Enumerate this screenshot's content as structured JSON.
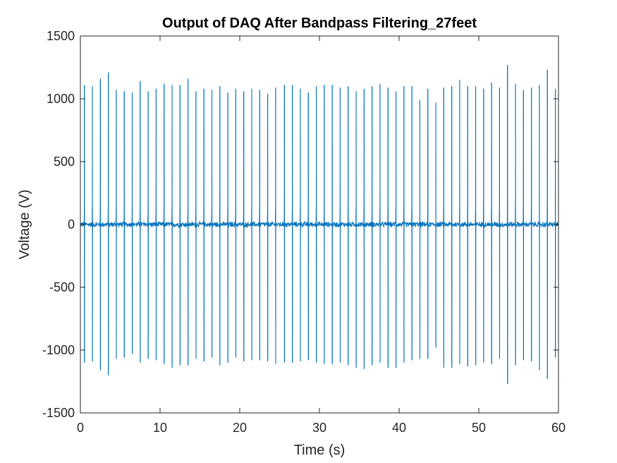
{
  "chart_data": {
    "type": "line",
    "title": "Output of DAQ After Bandpass Filtering_27feet",
    "xlabel": "Time (s)",
    "ylabel": "Voltage (V)",
    "xlim": [
      0,
      60
    ],
    "ylim": [
      -1500,
      1500
    ],
    "xticks": [
      0,
      10,
      20,
      30,
      40,
      50,
      60
    ],
    "yticks": [
      -1500,
      -1000,
      -500,
      0,
      500,
      1000,
      1500
    ],
    "xtick_labels": [
      "0",
      "10",
      "20",
      "30",
      "40",
      "50",
      "60"
    ],
    "ytick_labels": [
      "-1500",
      "-1000",
      "-500",
      "0",
      "500",
      "1000",
      "1500"
    ],
    "grid": false,
    "line_color": "#0072BD",
    "baseline_noise_amplitude": 25,
    "series": [
      {
        "spike_times": [
          0.5,
          1.5,
          2.5,
          3.5,
          4.5,
          5.5,
          6.5,
          7.5,
          8.5,
          9.5,
          10.5,
          11.5,
          12.5,
          13.5,
          14.5,
          15.5,
          16.5,
          17.5,
          18.5,
          19.5,
          20.5,
          21.5,
          22.5,
          23.5,
          24.5,
          25.6,
          26.6,
          27.6,
          28.6,
          29.6,
          30.6,
          31.6,
          32.6,
          33.6,
          34.6,
          35.6,
          36.6,
          37.6,
          38.6,
          39.6,
          40.6,
          41.6,
          42.6,
          43.6,
          44.6,
          45.6,
          46.6,
          47.6,
          48.6,
          49.6,
          50.6,
          51.6,
          52.6,
          53.6,
          54.6,
          55.6,
          56.6,
          57.6,
          58.6,
          59.6
        ],
        "spike_peaks": [
          1110,
          1100,
          1160,
          1210,
          1070,
          1060,
          1050,
          1140,
          1060,
          1080,
          1120,
          1110,
          1110,
          1160,
          1060,
          1080,
          1070,
          1100,
          1050,
          1080,
          1060,
          1080,
          1070,
          1040,
          1090,
          1110,
          1110,
          1080,
          1050,
          1100,
          1110,
          1110,
          1090,
          1100,
          1060,
          1080,
          1100,
          1120,
          1090,
          1060,
          1100,
          1100,
          990,
          1080,
          970,
          1090,
          1100,
          1150,
          1100,
          1100,
          1080,
          1130,
          1090,
          1270,
          1120,
          1070,
          1090,
          1110,
          1230,
          1080
        ],
        "spike_troughs": [
          -1100,
          -1090,
          -1160,
          -1200,
          -1070,
          -1060,
          -1030,
          -1100,
          -1070,
          -1080,
          -1110,
          -1140,
          -1120,
          -1120,
          -1070,
          -1090,
          -1060,
          -1120,
          -1100,
          -1060,
          -1090,
          -1080,
          -1080,
          -1090,
          -1110,
          -1100,
          -1100,
          -1090,
          -1080,
          -1100,
          -1110,
          -1110,
          -1100,
          -1120,
          -1140,
          -1150,
          -1120,
          -1100,
          -1140,
          -1140,
          -1100,
          -1080,
          -1070,
          -1070,
          -980,
          -1140,
          -1140,
          -1110,
          -1130,
          -1120,
          -1100,
          -1110,
          -1070,
          -1270,
          -1120,
          -1080,
          -1090,
          -1160,
          -1230,
          -1060
        ]
      }
    ]
  }
}
